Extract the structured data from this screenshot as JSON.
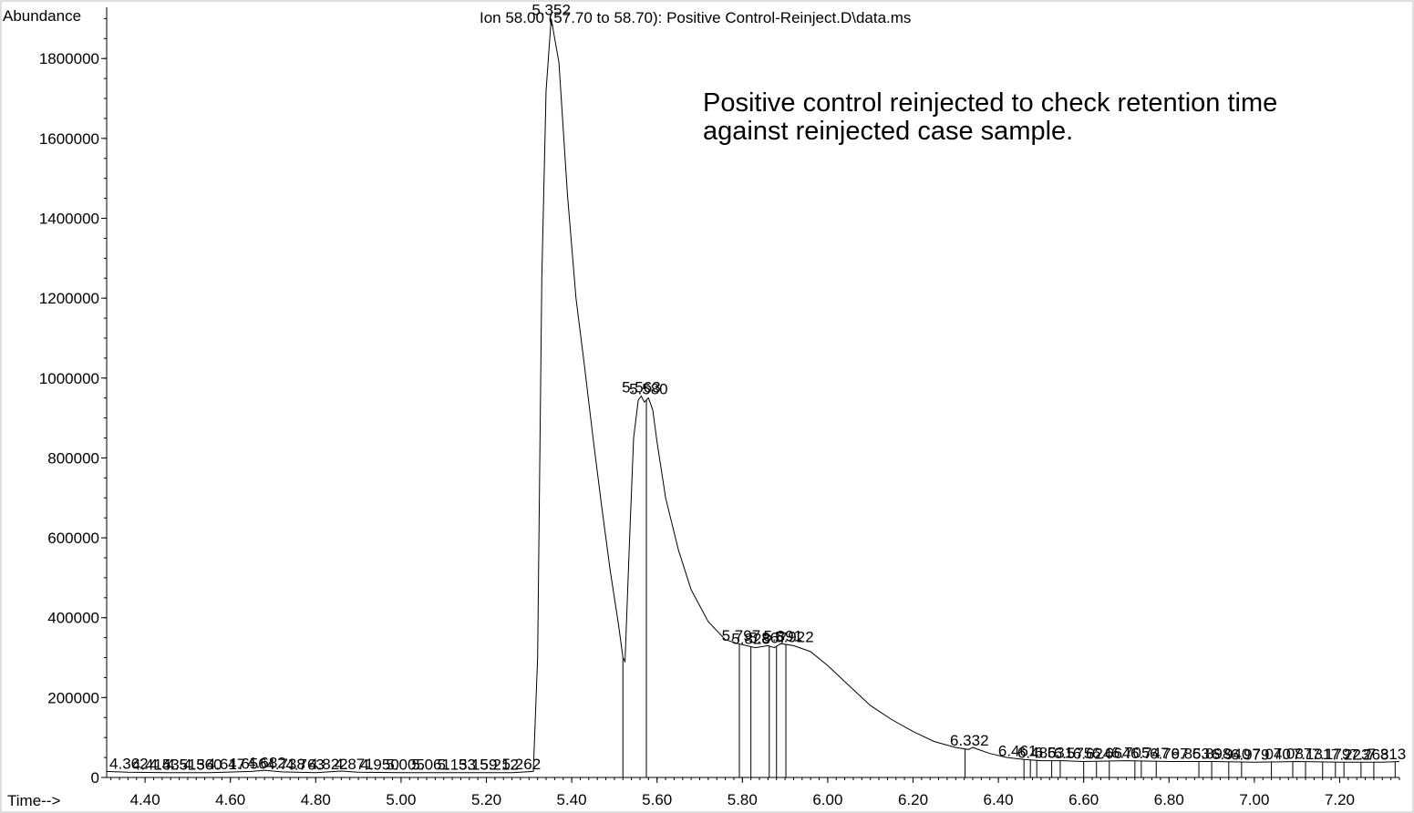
{
  "chart_data": {
    "type": "line",
    "title": "Ion  58.00 (57.70 to 58.70): Positive Control-Reinject.D\\data.ms",
    "ylabel": "Abundance",
    "xlabel": "Time-->",
    "xlim": [
      4.31,
      7.34
    ],
    "ylim": [
      0,
      1910000
    ],
    "x_ticks": [
      "4.40",
      "4.60",
      "4.80",
      "5.00",
      "5.20",
      "5.40",
      "5.60",
      "5.80",
      "6.00",
      "6.20",
      "6.40",
      "6.60",
      "6.80",
      "7.00",
      "7.20"
    ],
    "y_ticks": [
      "0",
      "200000",
      "400000",
      "600000",
      "800000",
      "1000000",
      "1200000",
      "1400000",
      "1600000",
      "1800000"
    ],
    "annotation": "Positive control reinjected to check retention time\nagainst reinjected case sample.",
    "series": [
      {
        "x": [
          4.31,
          4.36,
          4.45,
          4.55,
          4.65,
          4.68,
          4.72,
          4.8,
          4.86,
          4.9,
          5.0,
          5.1,
          5.2,
          5.26,
          5.31,
          5.32,
          5.33,
          5.34,
          5.352,
          5.37,
          5.39,
          5.41,
          5.43,
          5.45,
          5.47,
          5.49,
          5.51,
          5.52,
          5.525,
          5.535,
          5.545,
          5.556,
          5.563,
          5.57,
          5.58,
          5.59,
          5.6,
          5.62,
          5.65,
          5.68,
          5.72,
          5.76,
          5.79,
          5.81,
          5.83,
          5.86,
          5.875,
          5.89,
          5.92,
          5.96,
          6.0,
          6.05,
          6.1,
          6.15,
          6.2,
          6.25,
          6.3,
          6.33,
          6.34,
          6.38,
          6.42,
          6.46,
          6.5,
          6.55,
          6.6,
          6.7,
          6.8,
          6.9,
          7.0,
          7.1,
          7.2,
          7.3,
          7.34
        ],
        "y": [
          15000,
          13000,
          12000,
          12000,
          15000,
          18000,
          14000,
          12000,
          16000,
          13000,
          12000,
          12000,
          12000,
          12000,
          15000,
          300000,
          1250000,
          1720000,
          1900000,
          1790000,
          1460000,
          1200000,
          1030000,
          850000,
          680000,
          520000,
          380000,
          300000,
          290000,
          580000,
          850000,
          945000,
          955000,
          940000,
          950000,
          920000,
          840000,
          700000,
          570000,
          470000,
          390000,
          345000,
          335000,
          330000,
          325000,
          330000,
          325000,
          335000,
          330000,
          315000,
          280000,
          230000,
          180000,
          145000,
          115000,
          90000,
          75000,
          70000,
          75000,
          60000,
          50000,
          45000,
          42000,
          42000,
          40000,
          42000,
          40000,
          40000,
          38000,
          40000,
          38000,
          38000,
          40000
        ]
      }
    ],
    "peak_labels": [
      {
        "rt": 5.352,
        "text": "5.352"
      },
      {
        "rt": 5.563,
        "text": "5.563"
      },
      {
        "rt": 5.58,
        "text": "5.580"
      },
      {
        "rt": 5.797,
        "text": "5.797"
      },
      {
        "rt": 5.922,
        "text": "5.922"
      },
      {
        "rt": 6.332,
        "text": "6.332"
      },
      {
        "rt": 4.362,
        "text": "4.362"
      }
    ],
    "clutter_labels": [
      {
        "rt": 4.415,
        "text": "4.415"
      },
      {
        "rt": 4.455,
        "text": "4.435"
      },
      {
        "rt": 4.495,
        "text": "4.513"
      },
      {
        "rt": 4.535,
        "text": "4.560"
      },
      {
        "rt": 4.59,
        "text": "4.617"
      },
      {
        "rt": 4.64,
        "text": "4.656"
      },
      {
        "rt": 4.685,
        "text": "4.682"
      },
      {
        "rt": 4.73,
        "text": "4.738"
      },
      {
        "rt": 4.775,
        "text": "4.763"
      },
      {
        "rt": 4.83,
        "text": "4.822"
      },
      {
        "rt": 4.89,
        "text": "4.871"
      },
      {
        "rt": 4.95,
        "text": "4.950"
      },
      {
        "rt": 5.01,
        "text": "5.005"
      },
      {
        "rt": 5.07,
        "text": "5.061"
      },
      {
        "rt": 5.13,
        "text": "5.133"
      },
      {
        "rt": 5.18,
        "text": "5.159"
      },
      {
        "rt": 5.23,
        "text": "5.212"
      },
      {
        "rt": 5.282,
        "text": "5.262"
      },
      {
        "rt": 5.82,
        "text": "5.828"
      },
      {
        "rt": 5.86,
        "text": "5.867"
      },
      {
        "rt": 5.895,
        "text": "5.891"
      },
      {
        "rt": 6.445,
        "text": "6.461"
      },
      {
        "rt": 6.49,
        "text": "6.486"
      },
      {
        "rt": 6.53,
        "text": "6.531"
      },
      {
        "rt": 6.575,
        "text": "6.575"
      },
      {
        "rt": 6.62,
        "text": "6.624"
      },
      {
        "rt": 6.665,
        "text": "6.664"
      },
      {
        "rt": 6.71,
        "text": "6.705"
      },
      {
        "rt": 6.755,
        "text": "6.747"
      },
      {
        "rt": 6.8,
        "text": "6.797"
      },
      {
        "rt": 6.85,
        "text": "6.853"
      },
      {
        "rt": 6.9,
        "text": "6.898"
      },
      {
        "rt": 6.945,
        "text": "6.940"
      },
      {
        "rt": 6.99,
        "text": "6.979"
      },
      {
        "rt": 7.04,
        "text": "7.040"
      },
      {
        "rt": 7.09,
        "text": "7.087"
      },
      {
        "rt": 7.135,
        "text": "7.131"
      },
      {
        "rt": 7.18,
        "text": "7.179"
      },
      {
        "rt": 7.225,
        "text": "7.223"
      },
      {
        "rt": 7.27,
        "text": "7.268"
      },
      {
        "rt": 7.31,
        "text": "7.313"
      }
    ],
    "drop_lines": [
      5.52,
      5.575,
      5.793,
      5.82,
      5.863,
      5.88,
      5.902,
      6.322,
      6.46,
      6.475,
      6.49,
      6.525,
      6.545,
      6.6,
      6.63,
      6.66,
      6.72,
      6.735,
      6.77,
      6.87,
      6.9,
      6.94,
      6.97,
      7.04,
      7.09,
      7.12,
      7.16,
      7.19,
      7.21,
      7.25,
      7.28,
      7.33
    ],
    "grid": false,
    "legend": "none"
  }
}
